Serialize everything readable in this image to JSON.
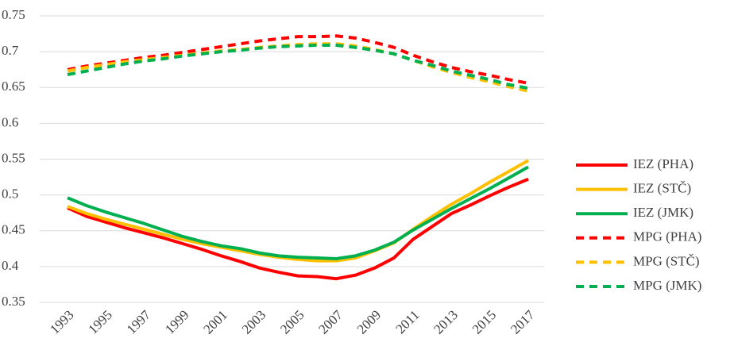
{
  "chart_data": {
    "type": "line",
    "x": [
      1993,
      1994,
      1995,
      1996,
      1997,
      1998,
      1999,
      2000,
      2001,
      2002,
      2003,
      2004,
      2005,
      2006,
      2007,
      2008,
      2009,
      2010,
      2011,
      2012,
      2013,
      2014,
      2015,
      2016,
      2017
    ],
    "xlim": [
      1993,
      2017
    ],
    "xticks": [
      1993,
      1995,
      1997,
      1999,
      2001,
      2003,
      2005,
      2007,
      2009,
      2011,
      2013,
      2015,
      2017
    ],
    "ylim": [
      0.35,
      0.75
    ],
    "yticks": [
      0.35,
      0.4,
      0.45,
      0.5,
      0.55,
      0.6,
      0.65,
      0.7,
      0.75
    ],
    "grid": true,
    "legend": "right",
    "series": [
      {
        "name": "IEZ (PHA)",
        "color": "#ff0000",
        "dash": "solid",
        "values": [
          0.482,
          0.47,
          0.462,
          0.454,
          0.447,
          0.44,
          0.432,
          0.424,
          0.415,
          0.407,
          0.398,
          0.392,
          0.387,
          0.386,
          0.383,
          0.388,
          0.398,
          0.412,
          0.438,
          0.456,
          0.474,
          0.486,
          0.499,
          0.511,
          0.522
        ]
      },
      {
        "name": "IEZ (STČ)",
        "color": "#ffc000",
        "dash": "solid",
        "values": [
          0.484,
          0.474,
          0.466,
          0.459,
          0.452,
          0.445,
          0.438,
          0.432,
          0.427,
          0.422,
          0.417,
          0.413,
          0.41,
          0.408,
          0.408,
          0.412,
          0.422,
          0.433,
          0.452,
          0.47,
          0.487,
          0.502,
          0.518,
          0.533,
          0.548
        ]
      },
      {
        "name": "IEZ (JMK)",
        "color": "#00b050",
        "dash": "solid",
        "values": [
          0.496,
          0.485,
          0.476,
          0.468,
          0.46,
          0.451,
          0.442,
          0.435,
          0.429,
          0.425,
          0.419,
          0.415,
          0.413,
          0.412,
          0.411,
          0.415,
          0.423,
          0.434,
          0.451,
          0.466,
          0.481,
          0.495,
          0.509,
          0.524,
          0.539
        ]
      },
      {
        "name": "MPG (PHA)",
        "color": "#ff0000",
        "dash": "dashed",
        "values": [
          0.675,
          0.68,
          0.684,
          0.688,
          0.692,
          0.695,
          0.699,
          0.703,
          0.707,
          0.711,
          0.715,
          0.718,
          0.721,
          0.721,
          0.722,
          0.719,
          0.713,
          0.706,
          0.695,
          0.686,
          0.678,
          0.672,
          0.667,
          0.661,
          0.656
        ]
      },
      {
        "name": "MPG (STČ)",
        "color": "#ffc000",
        "dash": "dashed",
        "values": [
          0.673,
          0.678,
          0.682,
          0.686,
          0.689,
          0.692,
          0.695,
          0.698,
          0.701,
          0.703,
          0.706,
          0.708,
          0.71,
          0.711,
          0.711,
          0.708,
          0.703,
          0.697,
          0.688,
          0.679,
          0.671,
          0.664,
          0.658,
          0.651,
          0.645
        ]
      },
      {
        "name": "MPG (JMK)",
        "color": "#00b050",
        "dash": "dashed",
        "values": [
          0.668,
          0.673,
          0.678,
          0.683,
          0.687,
          0.69,
          0.694,
          0.697,
          0.7,
          0.702,
          0.705,
          0.707,
          0.708,
          0.709,
          0.709,
          0.706,
          0.702,
          0.697,
          0.688,
          0.681,
          0.673,
          0.667,
          0.661,
          0.654,
          0.649
        ]
      }
    ]
  }
}
